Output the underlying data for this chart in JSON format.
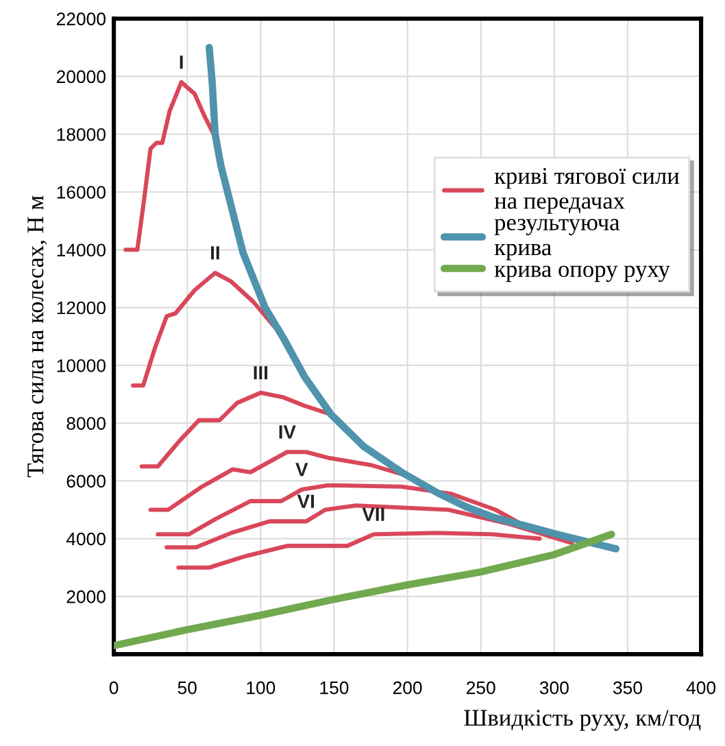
{
  "chart_data": {
    "type": "line",
    "xlabel": "Швидкість руху, км/год",
    "ylabel": "Тягова сила на колесах, Н м",
    "xlim": [
      0,
      400
    ],
    "ylim": [
      0,
      22000
    ],
    "xticks": [
      0,
      50,
      100,
      150,
      200,
      250,
      300,
      350,
      400
    ],
    "yticks": [
      2000,
      4000,
      6000,
      8000,
      10000,
      12000,
      14000,
      16000,
      18000,
      20000,
      22000
    ],
    "grid": true,
    "legend": "top right",
    "marker": "none",
    "line_style": "solid",
    "series": [
      {
        "name": "криві тягової сили\nна передачах",
        "color": "#d9475a",
        "x": [
          8,
          16,
          20,
          25,
          29,
          33,
          38,
          46,
          55,
          62,
          69
        ],
        "values": [
          14000,
          14000,
          15500,
          17500,
          17700,
          17700,
          18800,
          19800,
          19400,
          18600,
          17900
        ]
      },
      {
        "color": "#d9475a",
        "x": [
          13,
          20,
          28,
          36,
          42,
          55,
          69,
          80,
          95,
          110
        ],
        "values": [
          9300,
          9300,
          10600,
          11700,
          11800,
          12600,
          13200,
          12900,
          12200,
          11300
        ]
      },
      {
        "color": "#d9475a",
        "x": [
          19,
          30,
          45,
          58,
          72,
          84,
          100,
          115,
          130,
          148
        ],
        "values": [
          6500,
          6500,
          7400,
          8100,
          8100,
          8700,
          9050,
          8900,
          8600,
          8300
        ]
      },
      {
        "color": "#d9475a",
        "x": [
          25,
          37,
          60,
          81,
          93,
          118,
          131,
          146,
          175,
          205
        ],
        "values": [
          5000,
          5000,
          5800,
          6400,
          6300,
          7000,
          7000,
          6800,
          6550,
          6100
        ]
      },
      {
        "color": "#d9475a",
        "x": [
          30,
          51,
          70,
          93,
          114,
          128,
          146,
          196,
          230,
          260,
          285
        ],
        "values": [
          4150,
          4150,
          4700,
          5300,
          5300,
          5700,
          5850,
          5800,
          5550,
          5000,
          4300
        ]
      },
      {
        "color": "#d9475a",
        "x": [
          36,
          56,
          80,
          106,
          131,
          144,
          165,
          228,
          270,
          312
        ],
        "values": [
          3700,
          3700,
          4200,
          4600,
          4600,
          5000,
          5150,
          5000,
          4500,
          3850
        ]
      },
      {
        "color": "#d9475a",
        "x": [
          44,
          65,
          90,
          118,
          159,
          177,
          220,
          258,
          290
        ],
        "values": [
          3000,
          3000,
          3400,
          3750,
          3750,
          4150,
          4200,
          4150,
          4000
        ]
      },
      {
        "name": "результуюча\nкрива",
        "color": "#4f93ad",
        "x": [
          65,
          67,
          69,
          73,
          78,
          88,
          103,
          116,
          130,
          148,
          170,
          196,
          220,
          240,
          258,
          280,
          302,
          322,
          342
        ],
        "values": [
          21000,
          19800,
          18000,
          16900,
          15900,
          13900,
          12000,
          10900,
          9600,
          8300,
          7200,
          6300,
          5600,
          5100,
          4750,
          4450,
          4150,
          3900,
          3650
        ]
      },
      {
        "name": "крива опору руху",
        "color": "#72a94f",
        "x": [
          0,
          50,
          100,
          150,
          200,
          250,
          300,
          339
        ],
        "values": [
          300,
          850,
          1350,
          1900,
          2400,
          2850,
          3450,
          4150
        ]
      }
    ],
    "annotations": [
      {
        "text": "I",
        "x": 46,
        "y": 19800
      },
      {
        "text": "II",
        "x": 69,
        "y": 13200
      },
      {
        "text": "III",
        "x": 100,
        "y": 9050
      },
      {
        "text": "IV",
        "x": 118,
        "y": 7000
      },
      {
        "text": "V",
        "x": 128,
        "y": 5700
      },
      {
        "text": "VI",
        "x": 131,
        "y": 4600
      },
      {
        "text": "VII",
        "x": 177,
        "y": 4150
      }
    ]
  }
}
